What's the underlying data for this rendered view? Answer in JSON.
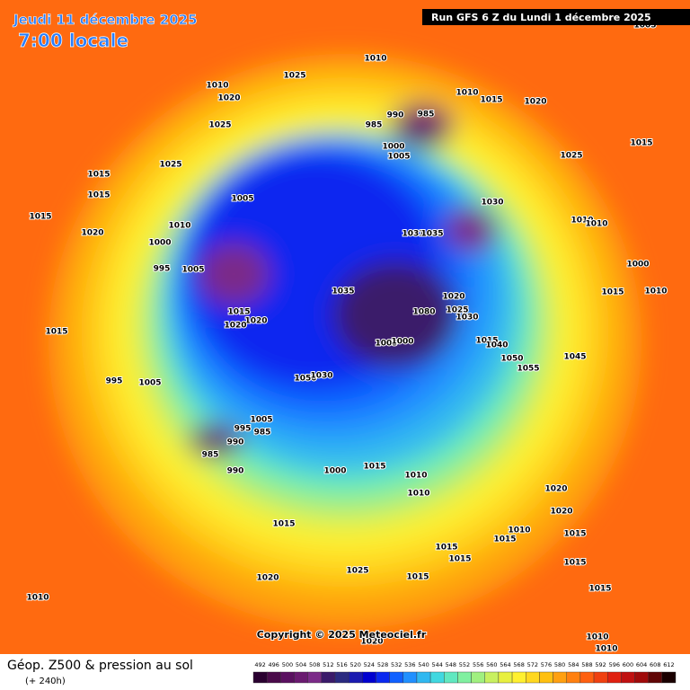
{
  "header": {
    "date": "Jeudi 11 décembre 2025",
    "time": "7:00 locale",
    "run": "Run GFS 6 Z du Lundi 1 décembre 2025"
  },
  "copyright": "Copyright © 2025 Meteociel.fr",
  "footer": {
    "title": "Géop. Z500 & pression au sol",
    "subtitle": "(+ 240h)"
  },
  "colorbar": {
    "ticks": [
      492,
      496,
      500,
      504,
      508,
      512,
      516,
      520,
      524,
      528,
      532,
      536,
      540,
      544,
      548,
      552,
      556,
      560,
      564,
      568,
      572,
      576,
      580,
      584,
      588,
      592,
      596,
      600,
      604,
      608,
      612
    ],
    "colors": [
      "#2a0030",
      "#4a0a4a",
      "#5a1060",
      "#6a1a70",
      "#7b2a88",
      "#3a1a6a",
      "#2a2a80",
      "#1a1ab0",
      "#0000d0",
      "#0a28f0",
      "#1060ff",
      "#2090ff",
      "#30b8f0",
      "#40d8e0",
      "#60e8c0",
      "#80f0a0",
      "#a0f080",
      "#c8f060",
      "#e8f040",
      "#fff030",
      "#ffd820",
      "#ffc010",
      "#ffa010",
      "#ff8010",
      "#ff6010",
      "#f04010",
      "#e02010",
      "#c01010",
      "#a00a0a",
      "#600505",
      "#1a0000"
    ]
  },
  "isobar_labels": [
    1010,
    1010,
    1025,
    1020,
    1025,
    1025,
    1015,
    1015,
    1015,
    1020,
    1010,
    1000,
    995,
    1005,
    1005,
    1015,
    1020,
    1020,
    1015,
    995,
    1005,
    1035,
    1031,
    1035,
    1030,
    1020,
    1025,
    1030,
    1080,
    1005,
    1000,
    990,
    985,
    985,
    1000,
    1005,
    1010,
    1015,
    1020,
    1025,
    1015,
    1010,
    1010,
    1000,
    1015,
    1010,
    1015,
    1040,
    1050,
    1055,
    1045,
    1050,
    1030,
    1005,
    995,
    985,
    990,
    985,
    990,
    1000,
    1015,
    1010,
    1010,
    1020,
    1020,
    1015,
    1010,
    1015,
    1015,
    1015,
    1015,
    1025,
    1015,
    1020,
    1010,
    1015,
    1015,
    1010,
    1010,
    1005,
    1020
  ]
}
